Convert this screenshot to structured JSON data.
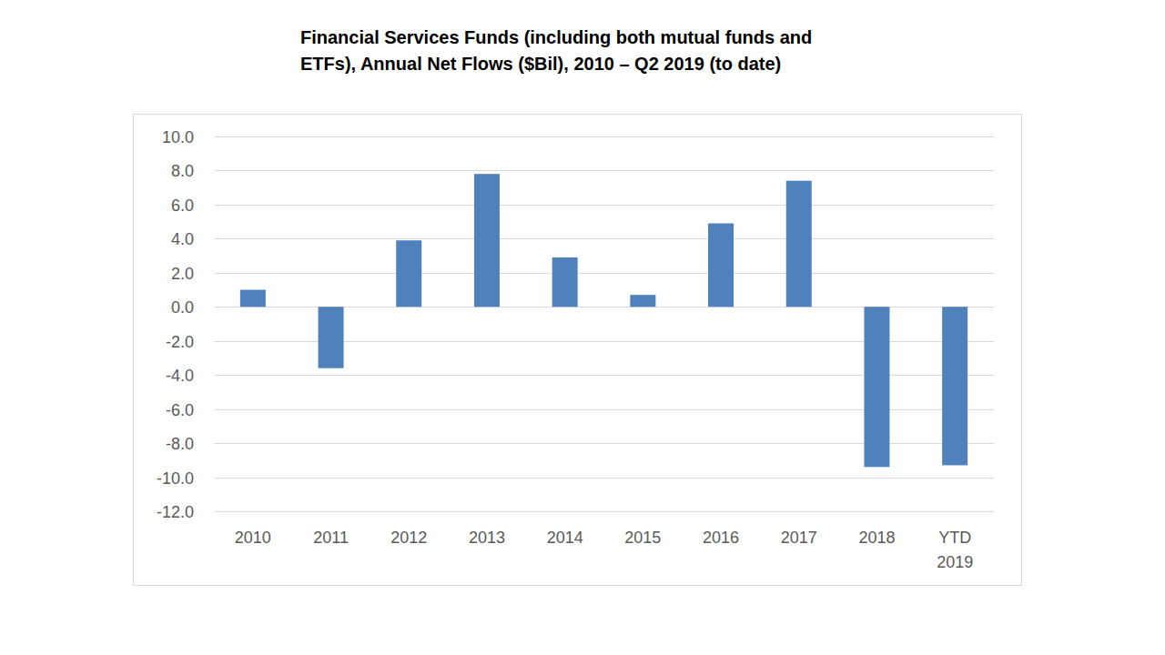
{
  "chart_data": {
    "type": "bar",
    "title": "Financial Services Funds (including both mutual funds and\nETFs), Annual Net Flows ($Bil), 2010 – Q2 2019 (to date)",
    "categories": [
      "2010",
      "2011",
      "2012",
      "2013",
      "2014",
      "2015",
      "2016",
      "2017",
      "2018",
      "YTD 2019"
    ],
    "values": [
      1.0,
      -3.6,
      3.9,
      7.8,
      2.9,
      0.7,
      4.9,
      7.4,
      -9.4,
      -9.3
    ],
    "color": "#4f81bd",
    "ylim": [
      -12,
      10
    ],
    "yticks": [
      {
        "value": -12,
        "label": "-12.0"
      },
      {
        "value": -10,
        "label": "-10.0"
      },
      {
        "value": -8,
        "label": "-8.0"
      },
      {
        "value": -6,
        "label": "-6.0"
      },
      {
        "value": -4,
        "label": "-4.0"
      },
      {
        "value": -2,
        "label": "-2.0"
      },
      {
        "value": 0,
        "label": "0.0"
      },
      {
        "value": 2,
        "label": "2.0"
      },
      {
        "value": 4,
        "label": "4.0"
      },
      {
        "value": 6,
        "label": "6.0"
      },
      {
        "value": 8,
        "label": "8.0"
      },
      {
        "value": 10,
        "label": "10.0"
      }
    ],
    "grid": true
  }
}
